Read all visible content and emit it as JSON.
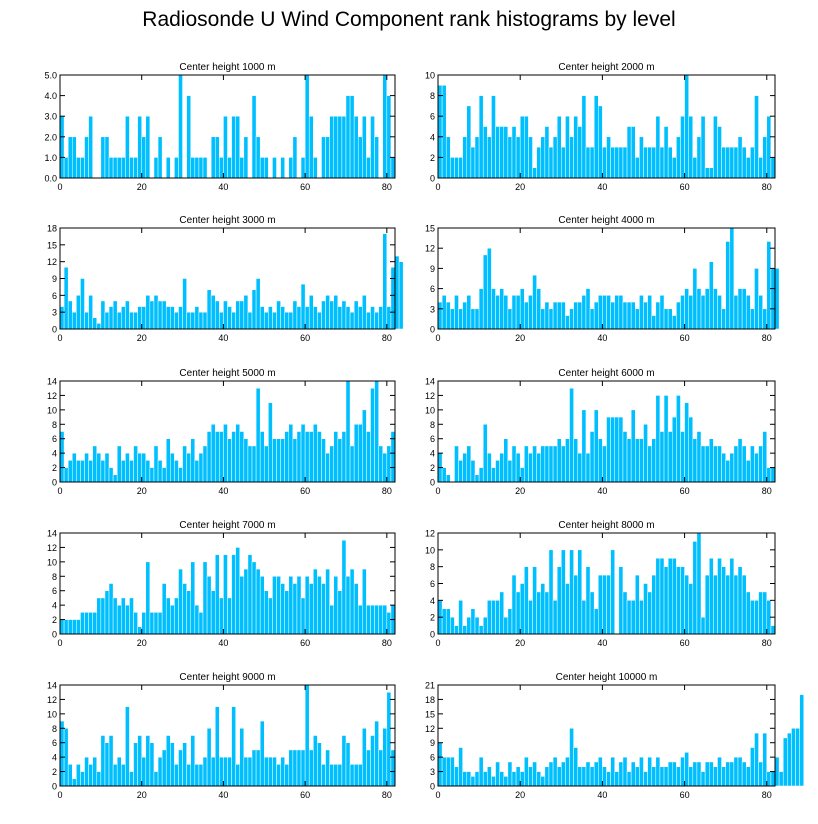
{
  "figure": {
    "title": "Radiosonde U Wind Component rank histograms by level",
    "bar_color": "#00BFFF",
    "bar_edge_color": "#ffffff",
    "axis_color": "#000000"
  },
  "chart_data": [
    {
      "type": "bar",
      "title": "Center height 1000 m",
      "xlim": [
        0,
        82
      ],
      "ylim": [
        0,
        5
      ],
      "xticks": [
        0,
        20,
        40,
        60,
        80
      ],
      "yticks": [
        0,
        1,
        2,
        3,
        4,
        5
      ],
      "ytick_labels": [
        "0.0",
        "1.0",
        "2.0",
        "3.0",
        "4.0",
        "5.0"
      ],
      "values": [
        3,
        1,
        2,
        2,
        1,
        1,
        2,
        3,
        0,
        0,
        2,
        2,
        1,
        1,
        1,
        1,
        3,
        1,
        1,
        3,
        2,
        3,
        0,
        1,
        2,
        0,
        1,
        0,
        1,
        5,
        0,
        4,
        1,
        1,
        1,
        1,
        0,
        2,
        2,
        1,
        3,
        1,
        3,
        3,
        1,
        2,
        0,
        4,
        2,
        1,
        1,
        0,
        1,
        0,
        1,
        0,
        1,
        2,
        0,
        1,
        5,
        3,
        1,
        0,
        2,
        2,
        3,
        3,
        3,
        3,
        4,
        4,
        3,
        2,
        3,
        1,
        3,
        2,
        0,
        5,
        4,
        1
      ]
    },
    {
      "type": "bar",
      "title": "Center height 2000 m",
      "xlim": [
        0,
        82
      ],
      "ylim": [
        0,
        10
      ],
      "xticks": [
        0,
        20,
        40,
        60,
        80
      ],
      "yticks": [
        0,
        2,
        4,
        6,
        8,
        10
      ],
      "ytick_labels": [
        "0",
        "2",
        "4",
        "6",
        "8",
        "10"
      ],
      "values": [
        9,
        9,
        4,
        2,
        2,
        2,
        4,
        7,
        3,
        4,
        8,
        5,
        4,
        8,
        5,
        5,
        5,
        4,
        5,
        4,
        6,
        6,
        4,
        1,
        3,
        4,
        5,
        3,
        4,
        6,
        3,
        6,
        4,
        6,
        5,
        8,
        3,
        3,
        8,
        7,
        3,
        4,
        3,
        3,
        3,
        3,
        5,
        5,
        2,
        4,
        3,
        3,
        3,
        6,
        3,
        5,
        3,
        2,
        4,
        6,
        10,
        6,
        2,
        4,
        6,
        1,
        1,
        6,
        5,
        3,
        3,
        3,
        3,
        4,
        3,
        2,
        3,
        8,
        2,
        4,
        6,
        2
      ]
    },
    {
      "type": "bar",
      "title": "Center height 3000 m",
      "xlim": [
        0,
        82
      ],
      "ylim": [
        0,
        18
      ],
      "xticks": [
        0,
        20,
        40,
        60,
        80
      ],
      "yticks": [
        0,
        3,
        6,
        9,
        12,
        15,
        18
      ],
      "ytick_labels": [
        "0",
        "3",
        "6",
        "9",
        "12",
        "15",
        "18"
      ],
      "values": [
        4,
        11,
        5,
        3,
        6,
        9,
        3,
        6,
        2,
        1,
        5,
        3,
        4,
        5,
        3,
        4,
        5,
        3,
        3,
        4,
        4,
        6,
        5,
        6,
        5,
        5,
        4,
        4,
        3,
        4,
        9,
        3,
        3,
        4,
        3,
        3,
        7,
        6,
        5,
        3,
        5,
        4,
        3,
        5,
        5,
        6,
        3,
        7,
        9,
        4,
        3,
        4,
        3,
        5,
        4,
        3,
        3,
        5,
        4,
        8,
        4,
        6,
        4,
        3,
        5,
        6,
        5,
        6,
        4,
        5,
        4,
        3,
        5,
        4,
        6,
        3,
        4,
        3,
        4,
        17,
        4,
        11,
        13,
        12
      ]
    },
    {
      "type": "bar",
      "title": "Center height 4000 m",
      "xlim": [
        0,
        82
      ],
      "ylim": [
        0,
        15
      ],
      "xticks": [
        0,
        20,
        40,
        60,
        80
      ],
      "yticks": [
        0,
        3,
        6,
        9,
        12,
        15
      ],
      "ytick_labels": [
        "0",
        "3",
        "6",
        "9",
        "12",
        "15"
      ],
      "values": [
        4,
        5,
        4,
        3,
        5,
        3,
        4,
        5,
        3,
        3,
        6,
        11,
        12,
        6,
        5,
        6,
        5,
        3,
        5,
        5,
        6,
        4,
        5,
        8,
        6,
        3,
        4,
        3,
        4,
        4,
        4,
        2,
        3,
        4,
        4,
        5,
        6,
        3,
        4,
        5,
        5,
        5,
        4,
        5,
        5,
        4,
        4,
        4,
        3,
        5,
        4,
        5,
        2,
        4,
        5,
        3,
        3,
        2,
        4,
        5,
        6,
        5,
        9,
        6,
        5,
        6,
        10,
        6,
        5,
        3,
        13,
        15,
        5,
        6,
        6,
        5,
        3,
        9,
        5,
        3,
        13,
        9,
        9
      ]
    },
    {
      "type": "bar",
      "title": "Center height 5000 m",
      "xlim": [
        0,
        82
      ],
      "ylim": [
        0,
        14
      ],
      "xticks": [
        0,
        20,
        40,
        60,
        80
      ],
      "yticks": [
        0,
        2,
        4,
        6,
        8,
        10,
        12,
        14
      ],
      "ytick_labels": [
        "0",
        "2",
        "4",
        "6",
        "8",
        "10",
        "12",
        "14"
      ],
      "values": [
        7,
        2,
        3,
        4,
        3,
        3,
        4,
        3,
        5,
        4,
        3,
        4,
        2,
        1,
        5,
        3,
        4,
        3,
        5,
        4,
        4,
        3,
        2,
        5,
        3,
        2,
        6,
        4,
        3,
        2,
        5,
        4,
        6,
        3,
        4,
        5,
        7,
        8,
        7,
        7,
        8,
        6,
        7,
        8,
        7,
        6,
        5,
        5,
        13,
        7,
        5,
        11,
        6,
        6,
        6,
        7,
        8,
        6,
        7,
        8,
        7,
        7,
        8,
        7,
        6,
        4,
        5,
        7,
        6,
        7,
        14,
        5,
        8,
        8,
        10,
        7,
        13,
        14,
        5,
        4,
        5,
        7
      ]
    },
    {
      "type": "bar",
      "title": "Center height 6000 m",
      "xlim": [
        0,
        82
      ],
      "ylim": [
        0,
        14
      ],
      "xticks": [
        0,
        20,
        40,
        60,
        80
      ],
      "yticks": [
        0,
        2,
        4,
        6,
        8,
        10,
        12,
        14
      ],
      "ytick_labels": [
        "0",
        "2",
        "4",
        "6",
        "8",
        "10",
        "12",
        "14"
      ],
      "values": [
        4,
        2,
        1,
        0,
        5,
        3,
        4,
        5,
        3,
        1,
        2,
        8,
        4,
        2,
        3,
        4,
        6,
        3,
        5,
        4,
        2,
        5,
        4,
        5,
        4,
        5,
        5,
        5,
        5,
        6,
        5,
        6,
        13,
        6,
        4,
        10,
        4,
        7,
        10,
        6,
        5,
        9,
        9,
        9,
        9,
        7,
        6,
        10,
        6,
        6,
        8,
        5,
        6,
        12,
        7,
        12,
        7,
        9,
        12,
        7,
        11,
        9,
        6,
        7,
        5,
        5,
        6,
        5,
        5,
        4,
        3,
        4,
        5,
        6,
        5,
        3,
        5,
        4,
        5,
        7,
        2,
        2
      ]
    },
    {
      "type": "bar",
      "title": "Center height 7000 m",
      "xlim": [
        0,
        82
      ],
      "ylim": [
        0,
        14
      ],
      "xticks": [
        0,
        20,
        40,
        60,
        80
      ],
      "yticks": [
        0,
        2,
        4,
        6,
        8,
        10,
        12,
        14
      ],
      "ytick_labels": [
        "0",
        "2",
        "4",
        "6",
        "8",
        "10",
        "12",
        "14"
      ],
      "values": [
        2,
        2,
        2,
        2,
        2,
        3,
        3,
        3,
        3,
        5,
        5,
        6,
        7,
        5,
        4,
        5,
        4,
        5,
        3,
        1,
        3,
        10,
        3,
        3,
        3,
        7,
        5,
        4,
        5,
        9,
        7,
        6,
        10,
        4,
        3,
        10,
        8,
        6,
        11,
        5,
        11,
        5,
        11,
        12,
        8,
        9,
        11,
        10,
        9,
        8,
        6,
        5,
        8,
        8,
        7,
        6,
        8,
        7,
        8,
        5,
        8,
        7,
        9,
        8,
        7,
        9,
        4,
        8,
        6,
        13,
        8,
        9,
        7,
        4,
        9,
        4,
        4,
        4,
        4,
        4,
        3,
        4
      ]
    },
    {
      "type": "bar",
      "title": "Center height 8000 m",
      "xlim": [
        0,
        82
      ],
      "ylim": [
        0,
        12
      ],
      "xticks": [
        0,
        20,
        40,
        60,
        80
      ],
      "yticks": [
        0,
        2,
        4,
        6,
        8,
        10,
        12
      ],
      "ytick_labels": [
        "0",
        "2",
        "4",
        "6",
        "8",
        "10",
        "12"
      ],
      "values": [
        4,
        3,
        3,
        2,
        1,
        4,
        1,
        2,
        3,
        2,
        1,
        2,
        4,
        4,
        4,
        5,
        2,
        3,
        7,
        5,
        6,
        8,
        4,
        8,
        5,
        6,
        5,
        10,
        4,
        8,
        10,
        6,
        10,
        7,
        10,
        4,
        8,
        5,
        3,
        7,
        7,
        7,
        10,
        0,
        8,
        5,
        4,
        4,
        7,
        4,
        6,
        5,
        7,
        9,
        9,
        8,
        9,
        9,
        8,
        8,
        7,
        6,
        11,
        12,
        2,
        7,
        9,
        7,
        9,
        8,
        7,
        9,
        7,
        8,
        7,
        5,
        4,
        4,
        5,
        5,
        4,
        1
      ]
    },
    {
      "type": "bar",
      "title": "Center height 9000 m",
      "xlim": [
        0,
        82
      ],
      "ylim": [
        0,
        14
      ],
      "xticks": [
        0,
        20,
        40,
        60,
        80
      ],
      "yticks": [
        0,
        2,
        4,
        6,
        8,
        10,
        12,
        14
      ],
      "ytick_labels": [
        "0",
        "2",
        "4",
        "6",
        "8",
        "10",
        "12",
        "14"
      ],
      "values": [
        9,
        8,
        3,
        1,
        3,
        2,
        4,
        3,
        4,
        2,
        7,
        6,
        7,
        3,
        4,
        3,
        11,
        2,
        6,
        7,
        4,
        7,
        6,
        2,
        4,
        5,
        7,
        6,
        3,
        5,
        6,
        3,
        7,
        3,
        3,
        4,
        8,
        4,
        11,
        4,
        4,
        4,
        11,
        3,
        8,
        4,
        4,
        5,
        5,
        9,
        4,
        4,
        4,
        3,
        4,
        3,
        5,
        5,
        5,
        5,
        14,
        5,
        7,
        6,
        3,
        5,
        3,
        3,
        3,
        7,
        6,
        3,
        3,
        3,
        8,
        5,
        7,
        9,
        5,
        8,
        13,
        5
      ]
    },
    {
      "type": "bar",
      "title": "Center height 10000 m",
      "xlim": [
        0,
        82
      ],
      "ylim": [
        0,
        21
      ],
      "xticks": [
        0,
        20,
        40,
        60,
        80
      ],
      "yticks": [
        0,
        3,
        6,
        9,
        12,
        15,
        18,
        21
      ],
      "ytick_labels": [
        "0",
        "3",
        "6",
        "9",
        "12",
        "15",
        "18",
        "21"
      ],
      "values": [
        9,
        6,
        6,
        6,
        4,
        8,
        3,
        3,
        2,
        3,
        6,
        3,
        4,
        2,
        5,
        3,
        2,
        5,
        3,
        4,
        3,
        6,
        4,
        5,
        3,
        2,
        4,
        5,
        6,
        4,
        5,
        6,
        12,
        8,
        4,
        4,
        5,
        4,
        5,
        6,
        4,
        3,
        6,
        3,
        5,
        6,
        3,
        5,
        4,
        6,
        3,
        6,
        4,
        6,
        4,
        4,
        5,
        5,
        4,
        6,
        7,
        4,
        5,
        5,
        3,
        5,
        5,
        4,
        6,
        4,
        5,
        5,
        6,
        6,
        5,
        4,
        8,
        11,
        5,
        11,
        3,
        3,
        6,
        3,
        10,
        11,
        12,
        12,
        19
      ]
    }
  ]
}
